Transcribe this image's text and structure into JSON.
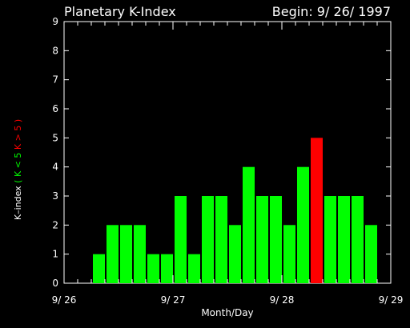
{
  "chart_data": {
    "type": "bar",
    "title": "Planetary K-Index",
    "begin_text": "Begin: 9/ 26/ 1997",
    "xlabel": "Month/Day",
    "ylabel_parts": [
      {
        "text": "K–index",
        "color": "#ffffff"
      },
      {
        "text": "( K < 5",
        "color": "#00ff00"
      },
      {
        "text": "K > 5 )",
        "color": "#ff0000"
      }
    ],
    "ylim": [
      0,
      9
    ],
    "y_ticks": [
      "0",
      "1",
      "2",
      "3",
      "4",
      "5",
      "6",
      "7",
      "8",
      "9"
    ],
    "x_tick_labels": [
      "9/ 26",
      "9/ 27",
      "9/ 28",
      "9/ 29"
    ],
    "grid": false,
    "intervals_per_day": 8,
    "days": 3,
    "values": [
      0,
      0,
      1,
      2,
      2,
      2,
      1,
      1,
      3,
      1,
      3,
      3,
      2,
      4,
      3,
      3,
      2,
      4,
      5,
      3,
      3,
      3,
      2,
      0
    ],
    "threshold": 5,
    "colors": {
      "below_threshold": "#00ff00",
      "at_or_above_threshold": "#ff0000",
      "background": "#000000",
      "axes": "#ffffff"
    }
  }
}
